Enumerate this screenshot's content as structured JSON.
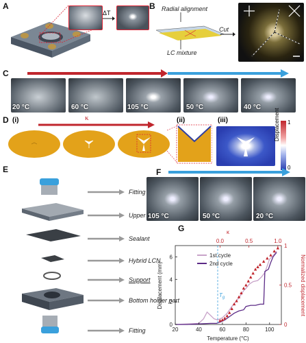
{
  "panels": {
    "a": "A",
    "b": "B",
    "c": "C",
    "d": "D",
    "e": "E",
    "f": "F",
    "g": "G"
  },
  "panel_a": {
    "delta_t": "ΔT"
  },
  "panel_b": {
    "radial": "Radial alignment",
    "lc_mixture": "LC mixture",
    "cut": "Cut"
  },
  "panel_c": {
    "temps": [
      "20 °C",
      "60 °C",
      "105 °C",
      "50 °C",
      "40 °C"
    ]
  },
  "panel_d": {
    "sub": [
      "(i)",
      "(ii)",
      "(iii)"
    ],
    "kappa": "κ",
    "colorbar_label": "Displacement",
    "colorbar_max": "1",
    "colorbar_min": "0"
  },
  "panel_e": {
    "labels": [
      "Fitting",
      "Upper holder part",
      "Sealant",
      "Hybrid LCN",
      "Support",
      "Bottom holder part",
      "Fitting"
    ]
  },
  "panel_f": {
    "temps": [
      "105 °C",
      "50 °C",
      "20 °C"
    ]
  },
  "chart_data": {
    "type": "line",
    "xlabel": "Temperature (°C)",
    "ylabel": "Displacement (mm)",
    "y2label": "Normalized displacement",
    "top_label": "κ",
    "xlim": [
      20,
      110
    ],
    "ylim": [
      0,
      7
    ],
    "y2lim": [
      0,
      1
    ],
    "top_lim": [
      0,
      1
    ],
    "x_ticks": [
      20,
      40,
      60,
      80,
      100
    ],
    "y_ticks": [
      0,
      2,
      4,
      6
    ],
    "y2_ticks": [
      0,
      0.5,
      1
    ],
    "top_ticks": [
      0,
      0.5,
      1
    ],
    "x_tick_labels": [
      "20",
      "40",
      "60",
      "80",
      "100"
    ],
    "y_tick_labels": [
      "0",
      "2",
      "4",
      "6"
    ],
    "y2_tick_labels": [
      "0",
      "0.5",
      "1"
    ],
    "top_tick_labels": [
      "0.0",
      "0.5",
      "1.0"
    ],
    "tg_label": "T",
    "tg_sub": "g",
    "tg_x": 56,
    "legend": [
      "1st cycle",
      "2nd cycle"
    ],
    "series": [
      {
        "name": "1st cycle",
        "color": "#c8a3c9",
        "x": [
          20,
          30,
          40,
          44,
          47,
          50,
          53,
          56,
          60,
          64,
          68,
          72,
          75,
          78,
          80,
          83,
          86,
          90,
          93,
          96,
          100,
          103,
          106
        ],
        "y": [
          0,
          0.05,
          0.1,
          0.5,
          1.1,
          0.8,
          0.5,
          0.4,
          0.6,
          1.0,
          1.6,
          2.1,
          2.5,
          3.0,
          3.2,
          3.6,
          3.8,
          3.9,
          4.2,
          4.6,
          5.8,
          6.1,
          6.5
        ]
      },
      {
        "name": "2nd cycle",
        "color": "#5b2a86",
        "x": [
          20,
          30,
          40,
          50,
          55,
          58,
          62,
          66,
          70,
          74,
          78,
          80,
          84,
          88,
          92,
          95,
          96,
          99,
          101,
          103,
          106
        ],
        "y": [
          0,
          0,
          0.05,
          0.1,
          0.1,
          0.2,
          0.4,
          0.7,
          1.0,
          1.2,
          1.3,
          1.6,
          1.7,
          1.7,
          1.8,
          1.8,
          4.7,
          4.9,
          5.5,
          6.0,
          6.4
        ]
      },
      {
        "name": "Normalized displacement",
        "color": "#c0262d",
        "marker": "triangle",
        "axis": "right",
        "x": [
          58,
          60,
          62,
          64,
          66,
          68,
          70,
          72,
          74,
          76,
          78,
          80,
          82,
          84,
          86,
          88,
          90,
          92,
          95,
          98,
          101,
          104,
          107
        ],
        "y": [
          0.05,
          0.06,
          0.08,
          0.11,
          0.15,
          0.2,
          0.26,
          0.3,
          0.35,
          0.4,
          0.46,
          0.5,
          0.55,
          0.6,
          0.65,
          0.7,
          0.73,
          0.76,
          0.8,
          0.84,
          0.88,
          0.93,
          0.97
        ]
      }
    ]
  }
}
